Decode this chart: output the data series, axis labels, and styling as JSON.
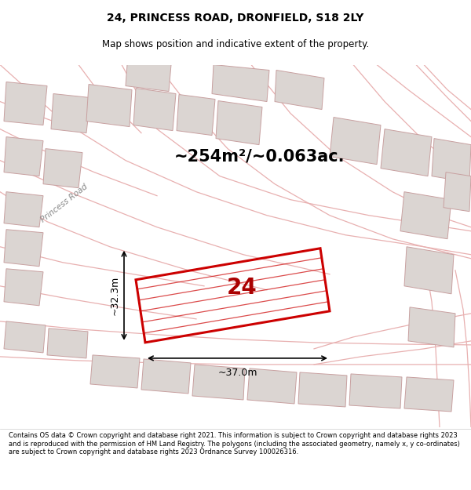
{
  "title": "24, PRINCESS ROAD, DRONFIELD, S18 2LY",
  "subtitle": "Map shows position and indicative extent of the property.",
  "area_text": "~254m²/~0.063ac.",
  "number_text": "24",
  "dim_horizontal": "~37.0m",
  "dim_vertical": "~32.3m",
  "road_label": "Princess Road",
  "footer_text": "Contains OS data © Crown copyright and database right 2021. This information is subject to Crown copyright and database rights 2023 and is reproduced with the permission of HM Land Registry. The polygons (including the associated geometry, namely x, y co-ordinates) are subject to Crown copyright and database rights 2023 Ordnance Survey 100026316.",
  "map_bg": "#edeae8",
  "plot_outline_color": "#cc0000",
  "footer_bg": "#ffffff",
  "building_fill": "#dbd5d2",
  "building_edge": "#c8a0a0",
  "road_line_color": "#e8b0b0"
}
